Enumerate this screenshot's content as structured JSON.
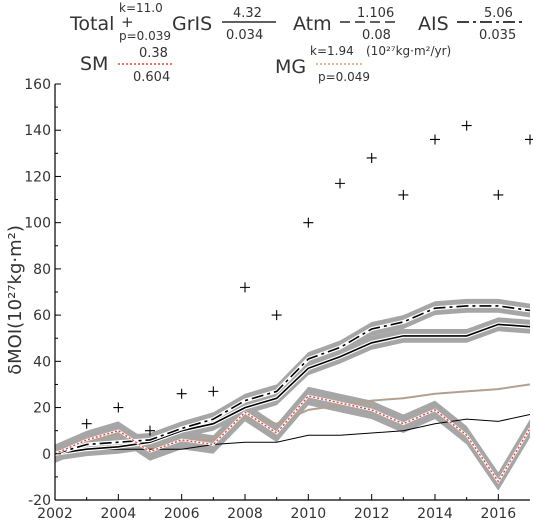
{
  "chart_data": {
    "type": "line",
    "ylabel": "δMOI(10²⁷kg·m²)",
    "xlim": [
      2002,
      2017
    ],
    "ylim": [
      -20,
      160
    ],
    "x_ticks": [
      "2002",
      "2004",
      "2006",
      "2008",
      "2010",
      "2012",
      "2014",
      "2016"
    ],
    "y_ticks": [
      "-20",
      "0",
      "20",
      "40",
      "60",
      "80",
      "100",
      "120",
      "140",
      "160"
    ],
    "grid": false,
    "legend_position": "top",
    "legend": {
      "total": {
        "name": "Total",
        "k_label": "k=11.0",
        "p_label": "p=0.039"
      },
      "gris": {
        "name": "GrIS",
        "k": "4.32",
        "p": "0.034"
      },
      "atm": {
        "name": "Atm",
        "k": "1.106",
        "p": "0.08"
      },
      "ais": {
        "name": "AIS",
        "k": "5.06",
        "p": "0.035"
      },
      "sm": {
        "name": "SM",
        "k": "0.38",
        "p": "0.604"
      },
      "mg": {
        "name": "MG",
        "k_label": "k=1.94",
        "units": "(10²⁷kg·m²/yr)",
        "p_label": "p=0.049"
      }
    },
    "series": [
      {
        "id": "total",
        "style": "markers",
        "color": "#000000",
        "x": [
          2003,
          2004,
          2005,
          2006,
          2007,
          2008,
          2009,
          2010,
          2011,
          2012,
          2013,
          2014,
          2015,
          2016,
          2017
        ],
        "y": [
          13,
          20,
          10,
          26,
          27,
          72,
          60,
          100,
          117,
          128,
          112,
          136,
          142,
          112,
          136
        ]
      },
      {
        "id": "ais",
        "style": "dashdot",
        "color": "#000000",
        "band": 3,
        "x": [
          2002,
          2003,
          2004,
          2005,
          2006,
          2007,
          2008,
          2009,
          2010,
          2011,
          2012,
          2013,
          2014,
          2015,
          2016,
          2017
        ],
        "y": [
          0,
          4,
          5,
          6,
          11,
          15,
          23,
          27,
          41,
          46,
          54,
          57,
          63,
          64,
          64,
          62
        ]
      },
      {
        "id": "gris",
        "style": "solid",
        "color": "#000000",
        "band": 3,
        "x": [
          2002,
          2003,
          2004,
          2005,
          2006,
          2007,
          2008,
          2009,
          2010,
          2011,
          2012,
          2013,
          2014,
          2015,
          2016,
          2017
        ],
        "y": [
          0,
          2,
          3,
          5,
          10,
          13,
          20,
          24,
          37,
          42,
          48,
          51,
          51,
          51,
          56,
          55
        ]
      },
      {
        "id": "sm",
        "style": "dotted",
        "color": "#e8443a",
        "band": 4,
        "x": [
          2002,
          2003,
          2004,
          2005,
          2006,
          2007,
          2008,
          2009,
          2010,
          2011,
          2012,
          2013,
          2014,
          2015,
          2016,
          2017
        ],
        "y": [
          0,
          6,
          10,
          1,
          6,
          4,
          18,
          9,
          25,
          22,
          19,
          13,
          19,
          8,
          -12,
          11
        ]
      },
      {
        "id": "mg",
        "style": "solid",
        "color": "#b3a090",
        "x": [
          2002,
          2003,
          2004,
          2005,
          2006,
          2007,
          2008,
          2009,
          2010,
          2011,
          2012,
          2013,
          2014,
          2015,
          2016,
          2017
        ],
        "y": [
          0,
          5,
          9,
          2,
          6,
          6,
          16,
          13,
          19,
          21,
          23,
          24,
          26,
          27,
          28,
          30
        ]
      },
      {
        "id": "atm",
        "style": "thin",
        "color": "#000000",
        "x": [
          2002,
          2003,
          2004,
          2005,
          2006,
          2007,
          2008,
          2009,
          2010,
          2011,
          2012,
          2013,
          2014,
          2015,
          2016,
          2017
        ],
        "y": [
          0,
          2,
          2,
          2,
          2,
          4,
          5,
          5,
          8,
          8,
          9,
          10,
          13,
          15,
          14,
          17
        ]
      }
    ]
  }
}
